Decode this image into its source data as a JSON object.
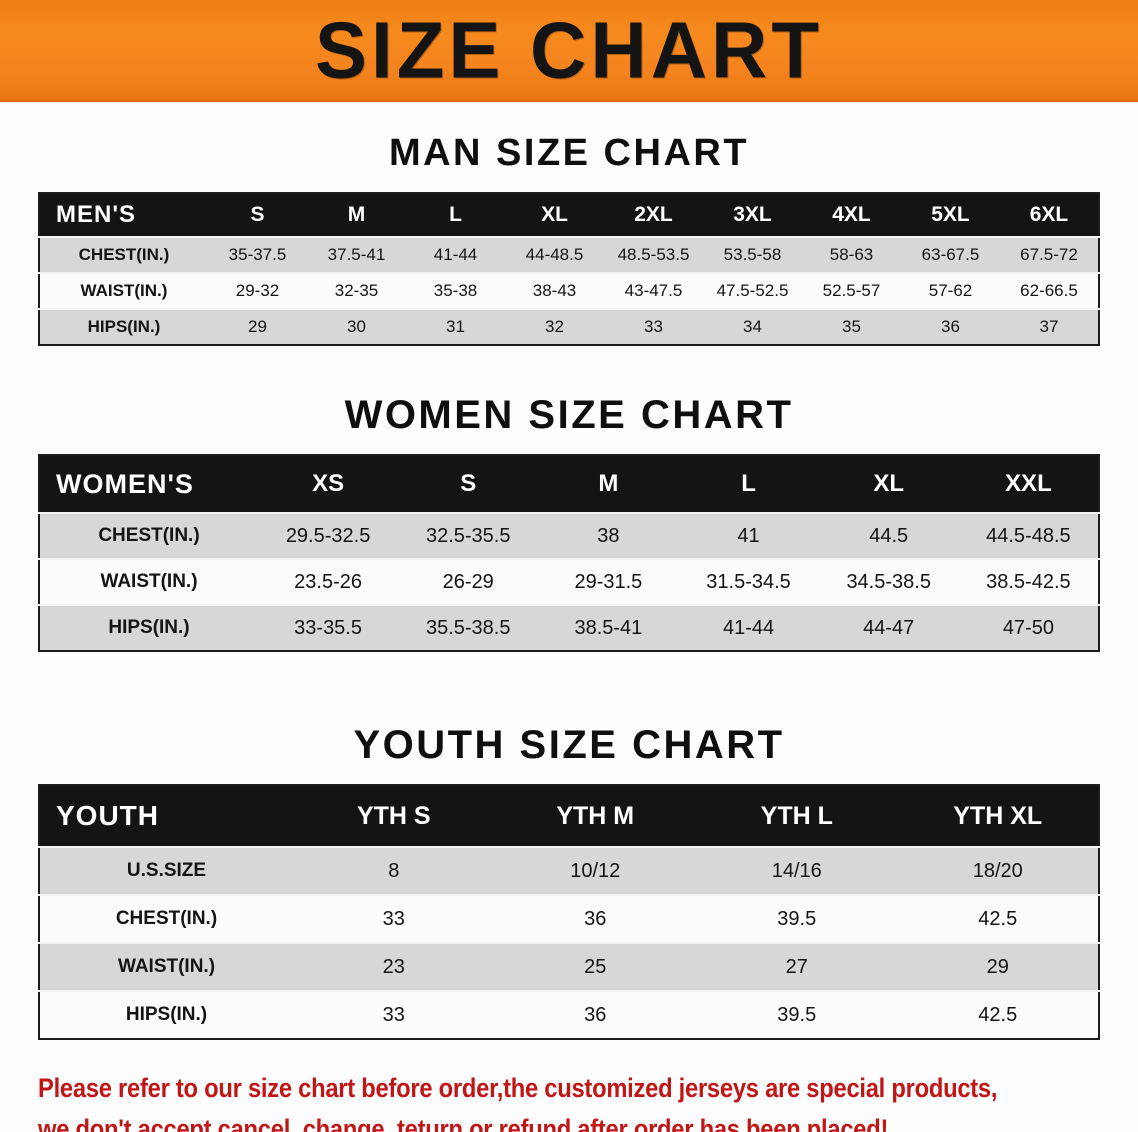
{
  "banner": {
    "title": "SIZE CHART",
    "background_color": "#f5831f",
    "text_color": "#141414"
  },
  "sections": [
    {
      "id": "men",
      "title": "MAN SIZE CHART",
      "header_label": "MEN'S",
      "columns": [
        "S",
        "M",
        "L",
        "XL",
        "2XL",
        "3XL",
        "4XL",
        "5XL",
        "6XL"
      ],
      "rows": [
        {
          "label": "CHEST(IN.)",
          "values": [
            "35-37.5",
            "37.5-41",
            "41-44",
            "44-48.5",
            "48.5-53.5",
            "53.5-58",
            "58-63",
            "63-67.5",
            "67.5-72"
          ]
        },
        {
          "label": "WAIST(IN.)",
          "values": [
            "29-32",
            "32-35",
            "35-38",
            "38-43",
            "43-47.5",
            "47.5-52.5",
            "52.5-57",
            "57-62",
            "62-66.5"
          ]
        },
        {
          "label": "HIPS(IN.)",
          "values": [
            "29",
            "30",
            "31",
            "32",
            "33",
            "34",
            "35",
            "36",
            "37"
          ]
        }
      ]
    },
    {
      "id": "women",
      "title": "WOMEN SIZE CHART",
      "header_label": "WOMEN'S",
      "columns": [
        "XS",
        "S",
        "M",
        "L",
        "XL",
        "XXL"
      ],
      "rows": [
        {
          "label": "CHEST(IN.)",
          "values": [
            "29.5-32.5",
            "32.5-35.5",
            "38",
            "41",
            "44.5",
            "44.5-48.5"
          ]
        },
        {
          "label": "WAIST(IN.)",
          "values": [
            "23.5-26",
            "26-29",
            "29-31.5",
            "31.5-34.5",
            "34.5-38.5",
            "38.5-42.5"
          ]
        },
        {
          "label": "HIPS(IN.)",
          "values": [
            "33-35.5",
            "35.5-38.5",
            "38.5-41",
            "41-44",
            "44-47",
            "47-50"
          ]
        }
      ]
    },
    {
      "id": "youth",
      "title": "YOUTH SIZE CHART",
      "header_label": "YOUTH",
      "columns": [
        "YTH S",
        "YTH M",
        "YTH L",
        "YTH XL"
      ],
      "rows": [
        {
          "label": "U.S.SIZE",
          "values": [
            "8",
            "10/12",
            "14/16",
            "18/20"
          ]
        },
        {
          "label": "CHEST(IN.)",
          "values": [
            "33",
            "36",
            "39.5",
            "42.5"
          ]
        },
        {
          "label": "WAIST(IN.)",
          "values": [
            "23",
            "25",
            "27",
            "29"
          ]
        },
        {
          "label": "HIPS(IN.)",
          "values": [
            "33",
            "36",
            "39.5",
            "42.5"
          ]
        }
      ]
    }
  ],
  "footer_note": {
    "lines": [
      "Please refer to our size chart before order,the customized jerseys are special products,",
      "we don't accept cancel, change, teturn or refund after order has been placed!"
    ],
    "text_color": "#c11616"
  },
  "colors": {
    "banner_orange": "#f5831f",
    "table_header_black": "#141414",
    "row_gray": "#d7d7d7",
    "row_white": "#fbfbfb",
    "note_red": "#c11616"
  }
}
